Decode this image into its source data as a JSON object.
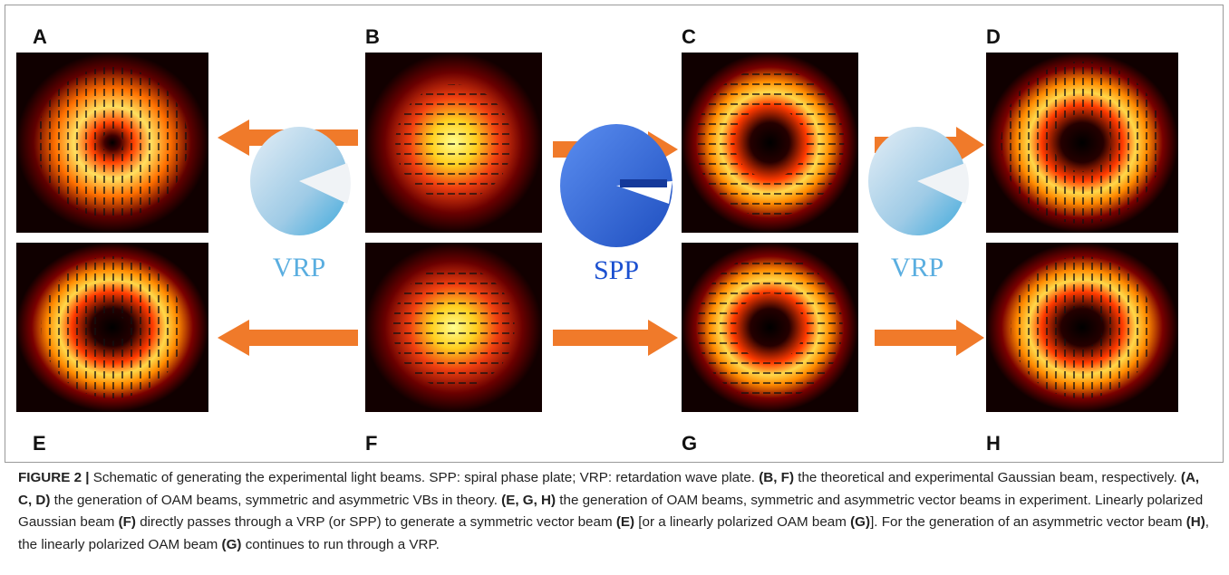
{
  "figure": {
    "panels": [
      "A",
      "B",
      "C",
      "D",
      "E",
      "F",
      "G",
      "H"
    ],
    "elements": [
      "VRP",
      "SPP",
      "VRP"
    ],
    "caption": [
      {
        "text": "FIGURE 2 |",
        "bold": true
      },
      {
        "text": " Schematic of generating the experimental light beams. SPP: spiral phase plate; VRP: retardation wave plate. ",
        "bold": false
      },
      {
        "text": "(B, F)",
        "bold": true
      },
      {
        "text": " the theoretical and experimental Gaussian beam, respectively. ",
        "bold": false
      },
      {
        "text": "(A, C, D)",
        "bold": true
      },
      {
        "text": " the generation of OAM beams, symmetric and asymmetric VBs in theory. ",
        "bold": false
      },
      {
        "text": "(E, G, H)",
        "bold": true
      },
      {
        "text": " the generation of OAM beams, symmetric and asymmetric vector beams in experiment. Linearly polarized Gaussian beam ",
        "bold": false
      },
      {
        "text": "(F)",
        "bold": true
      },
      {
        "text": " directly passes through a VRP (or SPP) to generate a symmetric vector beam ",
        "bold": false
      },
      {
        "text": "(E)",
        "bold": true
      },
      {
        "text": " [or a linearly polarized OAM beam ",
        "bold": false
      },
      {
        "text": "(G)",
        "bold": true
      },
      {
        "text": "]. For the generation of an asymmetric vector beam ",
        "bold": false
      },
      {
        "text": "(H)",
        "bold": true
      },
      {
        "text": ", the linearly polarized OAM beam ",
        "bold": false
      },
      {
        "text": "(G)",
        "bold": true
      },
      {
        "text": " continues to run through a VRP.",
        "bold": false
      }
    ]
  }
}
